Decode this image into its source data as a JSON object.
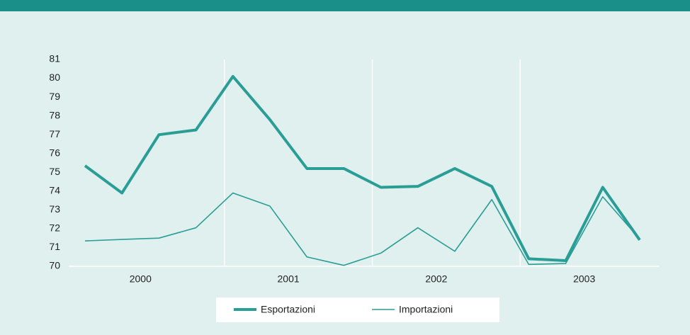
{
  "chart_data": {
    "type": "line",
    "categories": [
      null,
      null,
      null,
      null,
      null,
      null,
      null,
      null,
      null,
      null,
      null,
      null,
      null,
      null,
      null,
      null
    ],
    "x_groups": [
      {
        "label": "2000",
        "count": 4
      },
      {
        "label": "2001",
        "count": 4
      },
      {
        "label": "2002",
        "count": 4
      },
      {
        "label": "2003",
        "count": 4
      }
    ],
    "series": [
      {
        "name": "Esportazioni",
        "color": "#2a9d96",
        "width": 4,
        "values": [
          75.35,
          73.9,
          77.0,
          77.25,
          80.1,
          77.8,
          75.2,
          75.2,
          74.2,
          74.25,
          75.2,
          74.25,
          70.4,
          70.3,
          74.2,
          71.4
        ]
      },
      {
        "name": "Importazioni",
        "color": "#2a9d96",
        "width": 1.6,
        "values": [
          71.35,
          71.43,
          71.5,
          72.05,
          73.9,
          73.2,
          70.5,
          70.05,
          70.7,
          72.05,
          70.8,
          73.55,
          70.1,
          70.15,
          73.7,
          71.45
        ]
      }
    ],
    "ylim": [
      70,
      81
    ],
    "yticks": [
      70,
      71,
      72,
      73,
      74,
      75,
      76,
      77,
      78,
      79,
      80,
      81
    ],
    "legend": "bottom"
  }
}
